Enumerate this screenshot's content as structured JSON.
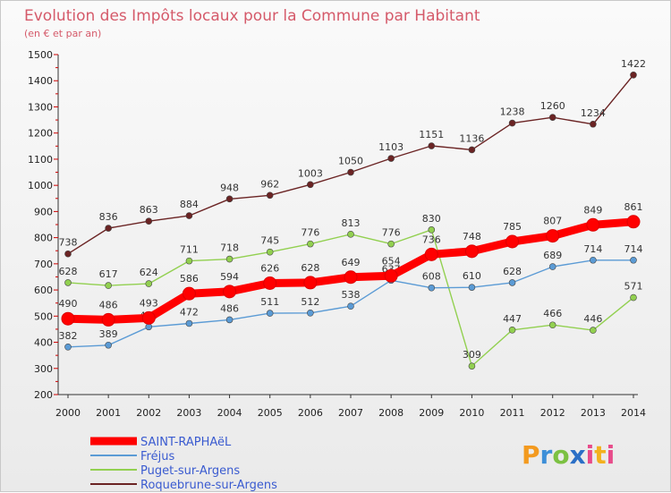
{
  "chart_data": {
    "type": "line",
    "title": "Evolution des Impôts locaux pour la Commune par Habitant",
    "subtitle": "(en € et par an)",
    "x": [
      "2000",
      "2001",
      "2002",
      "2003",
      "2004",
      "2005",
      "2006",
      "2007",
      "2008",
      "2009",
      "2010",
      "2011",
      "2012",
      "2013",
      "2014"
    ],
    "ylim": [
      200,
      1500
    ],
    "yticks": [
      "200",
      "300",
      "400",
      "500",
      "600",
      "700",
      "800",
      "900",
      "1000",
      "1100",
      "1200",
      "1300",
      "1400",
      "1500"
    ],
    "grid": false,
    "legend_position": "bottom-left",
    "series": [
      {
        "name": "SAINT-RAPHAëL",
        "color": "#ff0000",
        "values": [
          490,
          486,
          493,
          586,
          594,
          626,
          628,
          649,
          654,
          736,
          748,
          785,
          807,
          849,
          861
        ],
        "labels": [
          "490",
          "486",
          "493",
          "586",
          "594",
          "626",
          "628",
          "649",
          "654",
          "736",
          "748",
          "785",
          "807",
          "849",
          "861"
        ]
      },
      {
        "name": "Fréjus",
        "color": "#5b9bd5",
        "values": [
          382,
          389,
          459,
          472,
          486,
          511,
          512,
          538,
          637,
          608,
          610,
          628,
          689,
          714,
          714
        ],
        "labels": [
          "382",
          "389",
          "459",
          "472",
          "486",
          "511",
          "512",
          "538",
          "637",
          "608",
          "610",
          "628",
          "689",
          "714",
          "714"
        ]
      },
      {
        "name": "Puget-sur-Argens",
        "color": "#92d050",
        "values": [
          628,
          617,
          624,
          711,
          718,
          745,
          776,
          813,
          776,
          830,
          309,
          447,
          466,
          446,
          571
        ],
        "labels": [
          "628",
          "617",
          "624",
          "711",
          "718",
          "745",
          "776",
          "813",
          "776",
          "830",
          "309",
          "447",
          "466",
          "446",
          "571"
        ]
      },
      {
        "name": "Roquebrune-sur-Argens",
        "color": "#6b2424",
        "values": [
          738,
          836,
          863,
          884,
          948,
          962,
          1003,
          1050,
          1103,
          1151,
          1136,
          1238,
          1260,
          1234,
          1422
        ],
        "labels": [
          "738",
          "836",
          "863",
          "884",
          "948",
          "962",
          "1003",
          "1050",
          "1103",
          "1151",
          "1136",
          "1238",
          "1260",
          "1234",
          "1422"
        ]
      }
    ]
  },
  "logo": {
    "text": "Proxiti",
    "letters": [
      "P",
      "r",
      "o",
      "x",
      "i",
      "t",
      "i"
    ]
  }
}
